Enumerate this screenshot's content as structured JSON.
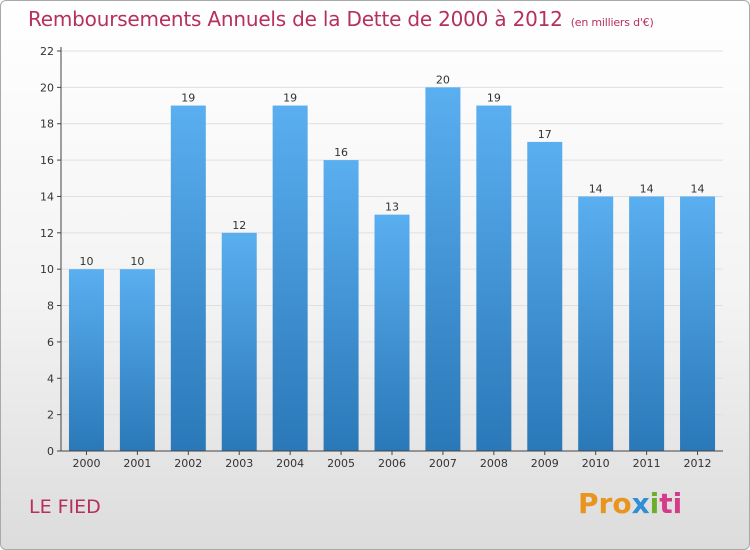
{
  "header": {
    "title": "Remboursements Annuels de la Dette de 2000 à 2012",
    "subtitle": "(en milliers d'€)"
  },
  "footer": {
    "commune": "LE FIED",
    "logo_parts": [
      "Pro",
      "x",
      "i",
      "ti"
    ]
  },
  "colors": {
    "title": "#b5305f",
    "bar_top": "#5aaff0",
    "bar_bottom": "#2a78b8",
    "axis": "#444444",
    "grid": "#e0e0e0"
  },
  "chart_data": {
    "type": "bar",
    "categories": [
      "2000",
      "2001",
      "2002",
      "2003",
      "2004",
      "2005",
      "2006",
      "2007",
      "2008",
      "2009",
      "2010",
      "2011",
      "2012"
    ],
    "values": [
      10,
      10,
      19,
      12,
      19,
      16,
      13,
      20,
      19,
      17,
      14,
      14,
      14
    ],
    "title": "Remboursements Annuels de la Dette de 2000 à 2012",
    "ylim": [
      0,
      22
    ],
    "yticks": [
      0,
      2,
      4,
      6,
      8,
      10,
      12,
      14,
      16,
      18,
      20,
      22
    ],
    "grid": true,
    "data_labels": true
  }
}
